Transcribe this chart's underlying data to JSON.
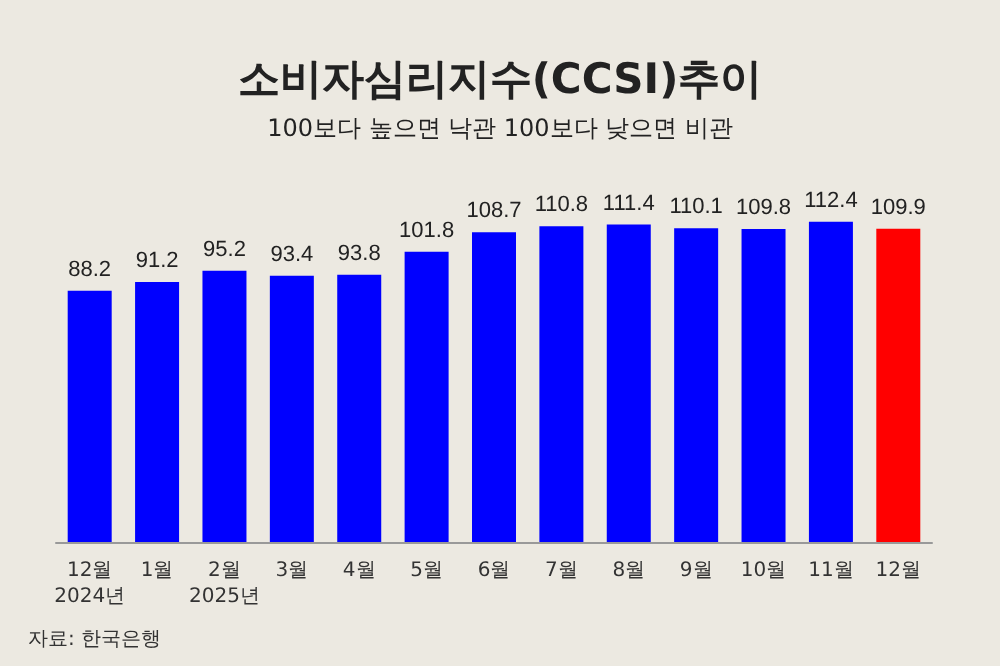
{
  "chart_data": {
    "type": "bar",
    "title": "소비자심리지수(CCSI)추이",
    "subtitle": "100보다 높으면 낙관 100보다 낮으면 비관",
    "categories": [
      "12월\n2024년",
      "1월",
      "2월\n2025년",
      "3월",
      "4월",
      "5월",
      "6월",
      "7월",
      "8월",
      "9월",
      "10월",
      "11월",
      "12월"
    ],
    "values": [
      88.2,
      91.2,
      95.2,
      93.4,
      93.8,
      101.8,
      108.7,
      110.8,
      111.4,
      110.1,
      109.8,
      112.4,
      109.9
    ],
    "colors": [
      "#0000ff",
      "#0000ff",
      "#0000ff",
      "#0000ff",
      "#0000ff",
      "#0000ff",
      "#0000ff",
      "#0000ff",
      "#0000ff",
      "#0000ff",
      "#0000ff",
      "#0000ff",
      "#ff0000"
    ],
    "data_labels": true,
    "annotations": [
      "자료: 한국은행"
    ]
  }
}
